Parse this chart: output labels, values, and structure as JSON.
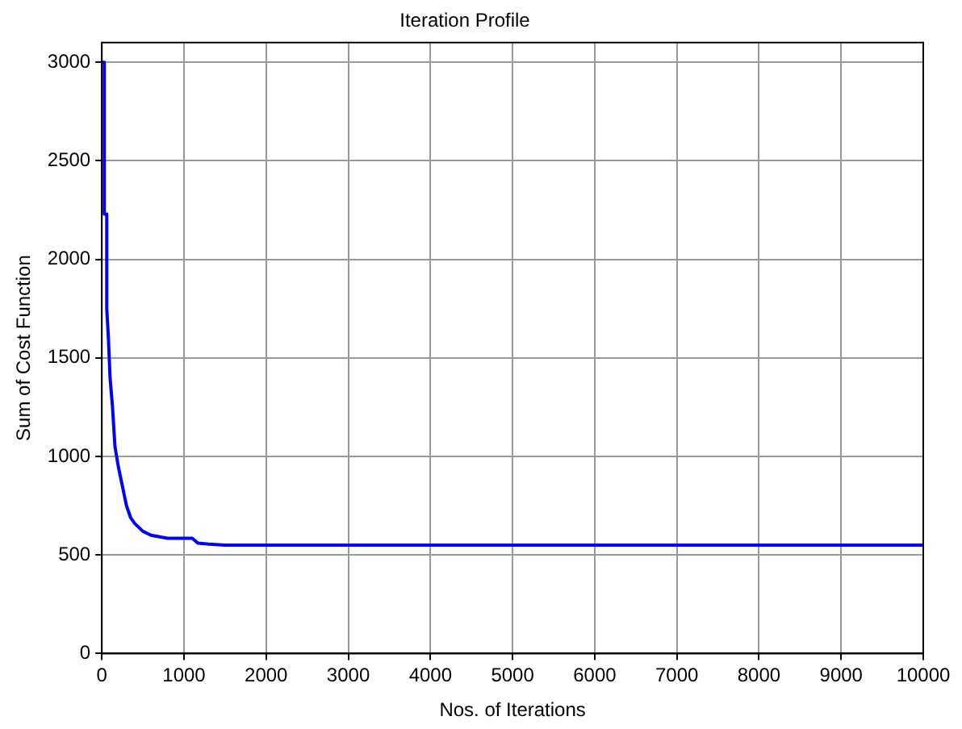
{
  "chart_data": {
    "type": "line",
    "title": "Iteration Profile",
    "xlabel": "Nos. of Iterations",
    "ylabel": "Sum of Cost Function",
    "series": [
      {
        "color": "#0000ff",
        "x": [
          0,
          30,
          30,
          60,
          60,
          80,
          100,
          130,
          160,
          200,
          250,
          300,
          350,
          400,
          500,
          600,
          800,
          1100,
          1170,
          1300,
          1500,
          10000
        ],
        "values": [
          3000,
          3000,
          2230,
          2230,
          1750,
          1600,
          1400,
          1250,
          1050,
          950,
          850,
          750,
          690,
          660,
          620,
          600,
          585,
          585,
          560,
          555,
          550,
          550
        ]
      }
    ],
    "xlim": [
      0,
      10000
    ],
    "xticks": [
      0,
      1000,
      2000,
      3000,
      4000,
      5000,
      6000,
      7000,
      8000,
      9000,
      10000
    ],
    "ylim": [
      0,
      3100
    ],
    "yticks": [
      0,
      500,
      1000,
      1500,
      2000,
      2500,
      3000
    ],
    "grid": true,
    "legend": false,
    "marker": "none",
    "line_style": "solid"
  }
}
